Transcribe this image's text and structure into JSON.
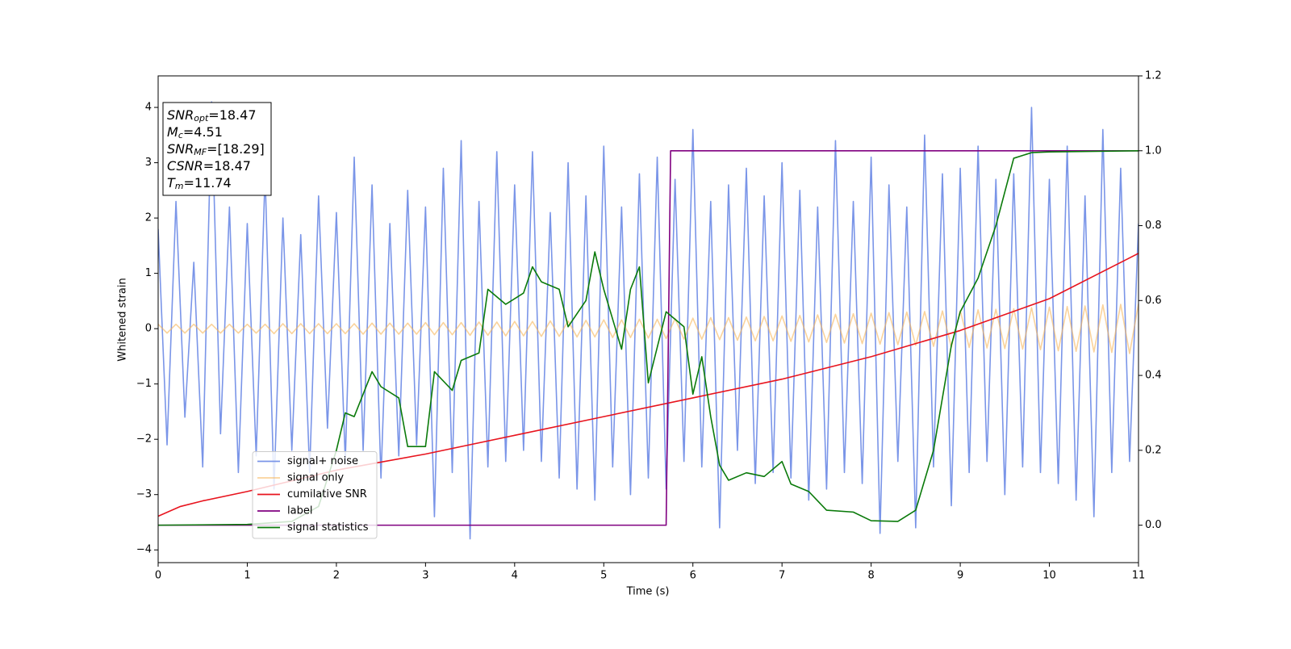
{
  "chart_data": {
    "type": "line",
    "xlabel": "Time (s)",
    "ylabel": "Whitened strain",
    "xlim": [
      0,
      11
    ],
    "xticks": [
      0,
      1,
      2,
      3,
      4,
      5,
      6,
      7,
      8,
      9,
      10,
      11
    ],
    "ylim": [
      -4.23,
      4.57
    ],
    "yticks": [
      -4,
      -3,
      -2,
      -1,
      0,
      1,
      2,
      3,
      4
    ],
    "y2lim": [
      -0.1,
      1.2
    ],
    "y2ticks": [
      {
        "value": 0,
        "label": "0.0"
      },
      0.2,
      0.4,
      0.6,
      0.8,
      {
        "value": 1,
        "label": "1.0"
      },
      1.2
    ],
    "legend": "lower left",
    "annotations": [
      {
        "main": "SNR",
        "sub": "opt",
        "text": "=18.47"
      },
      {
        "main": "M",
        "sub": "c",
        "text": "=4.51"
      },
      {
        "main": "SNR",
        "sub": "MF",
        "text": "=[18.29]"
      },
      {
        "main": "CSNR",
        "text": "=18.47"
      },
      {
        "main": "T",
        "sub": "m",
        "text": "=11.74"
      }
    ],
    "x": [
      0,
      0.1,
      0.2,
      0.3,
      0.4,
      0.5,
      0.6,
      0.7,
      0.8,
      0.9,
      1,
      1.1,
      1.2,
      1.3,
      1.4,
      1.5,
      1.6,
      1.7,
      1.8,
      1.9,
      2,
      2.1,
      2.2,
      2.3,
      2.4,
      2.5,
      2.6,
      2.7,
      2.8,
      2.9,
      3,
      3.1,
      3.2,
      3.3,
      3.4,
      3.5,
      3.6,
      3.7,
      3.8,
      3.9,
      4,
      4.1,
      4.2,
      4.3,
      4.4,
      4.5,
      4.6,
      4.7,
      4.8,
      4.9,
      5,
      5.1,
      5.2,
      5.3,
      5.4,
      5.5,
      5.6,
      5.7,
      5.8,
      5.9,
      6,
      6.1,
      6.2,
      6.3,
      6.4,
      6.5,
      6.6,
      6.7,
      6.8,
      6.9,
      7,
      7.1,
      7.2,
      7.3,
      7.4,
      7.5,
      7.6,
      7.7,
      7.8,
      7.9,
      8,
      8.1,
      8.2,
      8.3,
      8.4,
      8.5,
      8.6,
      8.7,
      8.8,
      8.9,
      9,
      9.1,
      9.2,
      9.3,
      9.4,
      9.5,
      9.6,
      9.7,
      9.8,
      9.9,
      10,
      10.1,
      10.2,
      10.3,
      10.4,
      10.5,
      10.6,
      10.7,
      10.8,
      10.9,
      11
    ],
    "series": [
      {
        "name": "signal+ noise",
        "color": "#7a95e8",
        "values": [
          1.8,
          -2.1,
          2.3,
          -1.6,
          1.2,
          -2.5,
          4.1,
          -1.9,
          2.2,
          -2.6,
          1.9,
          -2.3,
          2.8,
          -2.9,
          2.0,
          -2.2,
          1.7,
          -2.6,
          2.4,
          -1.8,
          2.1,
          -2.4,
          3.1,
          -2.2,
          2.6,
          -2.7,
          1.9,
          -2.3,
          2.5,
          -2.1,
          2.2,
          -3.4,
          2.9,
          -2.6,
          3.4,
          -3.8,
          2.3,
          -2.5,
          3.2,
          -2.4,
          2.6,
          -2.2,
          3.2,
          -2.4,
          2.1,
          -2.7,
          3.0,
          -2.9,
          2.4,
          -3.1,
          3.3,
          -2.5,
          2.2,
          -3.0,
          2.8,
          -2.7,
          3.1,
          -2.9,
          2.7,
          -2.4,
          3.6,
          -2.5,
          2.3,
          -3.6,
          2.6,
          -2.2,
          2.9,
          -2.8,
          2.4,
          -2.6,
          3.0,
          -2.7,
          2.5,
          -3.1,
          2.2,
          -2.9,
          3.4,
          -2.6,
          2.3,
          -2.8,
          3.1,
          -3.7,
          2.6,
          -2.4,
          2.2,
          -3.6,
          3.5,
          -2.5,
          2.8,
          -3.2,
          2.9,
          -2.6,
          3.3,
          -2.4,
          2.7,
          -3.0,
          2.8,
          -2.5,
          4.0,
          -2.6,
          2.7,
          -2.8,
          3.3,
          -3.1,
          2.4,
          -3.4,
          3.6,
          -2.6,
          2.9,
          -2.4,
          1.9
        ]
      },
      {
        "name": "signal only",
        "color": "#f7b55a",
        "values": [
          0.08,
          -0.08,
          0.08,
          -0.08,
          0.08,
          -0.08,
          0.08,
          -0.08,
          0.08,
          -0.08,
          0.08,
          -0.08,
          0.08,
          -0.09,
          0.09,
          -0.09,
          0.09,
          -0.09,
          0.09,
          -0.09,
          0.09,
          -0.09,
          0.09,
          -0.1,
          0.1,
          -0.1,
          0.1,
          -0.1,
          0.1,
          -0.1,
          0.11,
          -0.11,
          0.11,
          -0.11,
          0.11,
          -0.12,
          0.12,
          -0.12,
          0.12,
          -0.13,
          0.13,
          -0.13,
          0.13,
          -0.14,
          0.14,
          -0.14,
          0.14,
          -0.15,
          0.15,
          -0.15,
          0.16,
          -0.16,
          0.16,
          -0.16,
          0.17,
          -0.17,
          0.17,
          -0.18,
          0.18,
          -0.19,
          0.19,
          -0.19,
          0.2,
          -0.2,
          0.2,
          -0.21,
          0.21,
          -0.22,
          0.22,
          -0.22,
          0.23,
          -0.23,
          0.24,
          -0.24,
          0.25,
          -0.25,
          0.26,
          -0.26,
          0.27,
          -0.27,
          0.28,
          -0.28,
          0.29,
          -0.29,
          0.3,
          -0.3,
          0.31,
          -0.32,
          0.32,
          -0.33,
          0.33,
          -0.34,
          0.34,
          -0.35,
          0.35,
          -0.36,
          0.36,
          -0.37,
          0.38,
          -0.38,
          0.39,
          -0.4,
          0.4,
          -0.41,
          0.41,
          -0.42,
          0.43,
          -0.43,
          0.44,
          -0.45,
          0.45
        ]
      },
      {
        "name": "cumilative SNR",
        "color": "#e8141e",
        "axis": "y2",
        "x": [
          0,
          0.25,
          0.5,
          1,
          2,
          3,
          4,
          5,
          6,
          7,
          8,
          9,
          10,
          11
        ],
        "values": [
          0.024,
          0.05,
          0.065,
          0.09,
          0.147,
          0.19,
          0.24,
          0.29,
          0.34,
          0.39,
          0.45,
          0.52,
          0.605,
          0.726
        ]
      },
      {
        "name": "label",
        "color": "#800080",
        "axis": "y2",
        "x": [
          0,
          5.7,
          5.75,
          11
        ],
        "values": [
          0,
          0,
          1,
          1
        ]
      },
      {
        "name": "signal statistics",
        "color": "#0a7a0a",
        "axis": "y2",
        "x": [
          0,
          1,
          1.5,
          1.8,
          2,
          2.1,
          2.2,
          2.4,
          2.5,
          2.7,
          2.8,
          3.0,
          3.1,
          3.3,
          3.4,
          3.6,
          3.7,
          3.9,
          4.1,
          4.2,
          4.3,
          4.5,
          4.6,
          4.8,
          4.9,
          5.0,
          5.2,
          5.3,
          5.4,
          5.5,
          5.7,
          5.9,
          6.0,
          6.1,
          6.2,
          6.3,
          6.4,
          6.6,
          6.8,
          7.0,
          7.1,
          7.3,
          7.5,
          7.8,
          8.0,
          8.3,
          8.5,
          8.7,
          8.9,
          9.0,
          9.2,
          9.4,
          9.6,
          9.8,
          10,
          11
        ],
        "values": [
          0,
          0.002,
          0.01,
          0.05,
          0.2,
          0.3,
          0.29,
          0.41,
          0.37,
          0.34,
          0.21,
          0.21,
          0.41,
          0.36,
          0.44,
          0.46,
          0.63,
          0.59,
          0.62,
          0.69,
          0.65,
          0.63,
          0.53,
          0.6,
          0.73,
          0.63,
          0.47,
          0.63,
          0.69,
          0.38,
          0.57,
          0.53,
          0.35,
          0.45,
          0.29,
          0.16,
          0.12,
          0.14,
          0.13,
          0.17,
          0.11,
          0.09,
          0.04,
          0.035,
          0.012,
          0.01,
          0.04,
          0.2,
          0.48,
          0.57,
          0.66,
          0.8,
          0.98,
          0.995,
          0.997,
          1.0
        ]
      }
    ]
  }
}
